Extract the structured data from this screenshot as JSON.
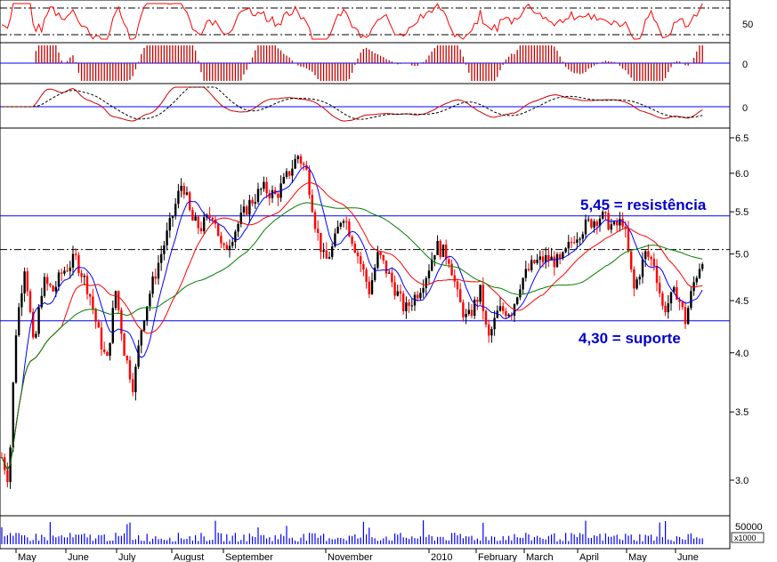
{
  "chart_data": {
    "type": "candlestick",
    "title": "",
    "xlabel": "",
    "ylabel": "",
    "price_scale": "log",
    "ylim": [
      2.9,
      6.6
    ],
    "y_ticks": [
      "6.5",
      "6.0",
      "5.5",
      "5.0",
      "4.5",
      "4.0",
      "3.5",
      "3.0"
    ],
    "x_month_labels": [
      "May",
      "June",
      "July",
      "August",
      "September",
      "November",
      "2010",
      "February",
      "March",
      "April",
      "May",
      "June"
    ],
    "rsi_axis_label": "50",
    "macd_hist_axis_label": "0",
    "macd_axis_label": "0",
    "volume_axis_label": "50000",
    "volume_multiplier_label": "x1000",
    "support": {
      "value": 4.3,
      "label": "4,30 = suporte"
    },
    "resistance": {
      "value": 5.45,
      "label": "5,45 = resistência"
    },
    "reference_dashdot_level": 5.05,
    "series_path": [
      [
        0,
        3.2
      ],
      [
        10,
        3.0
      ],
      [
        18,
        4.2
      ],
      [
        28,
        4.9
      ],
      [
        38,
        4.0
      ],
      [
        48,
        4.7
      ],
      [
        60,
        4.6
      ],
      [
        70,
        4.8
      ],
      [
        85,
        4.95
      ],
      [
        100,
        4.6
      ],
      [
        110,
        4.2
      ],
      [
        120,
        3.9
      ],
      [
        130,
        4.6
      ],
      [
        140,
        4.0
      ],
      [
        150,
        3.7
      ],
      [
        160,
        4.3
      ],
      [
        175,
        4.8
      ],
      [
        190,
        5.3
      ],
      [
        205,
        5.9
      ],
      [
        215,
        5.4
      ],
      [
        225,
        5.3
      ],
      [
        240,
        5.5
      ],
      [
        250,
        5.0
      ],
      [
        265,
        5.3
      ],
      [
        280,
        5.6
      ],
      [
        295,
        5.8
      ],
      [
        310,
        5.7
      ],
      [
        320,
        5.9
      ],
      [
        335,
        6.25
      ],
      [
        345,
        6.0
      ],
      [
        355,
        5.3
      ],
      [
        365,
        4.9
      ],
      [
        375,
        5.1
      ],
      [
        385,
        5.5
      ],
      [
        395,
        5.2
      ],
      [
        405,
        4.9
      ],
      [
        415,
        4.6
      ],
      [
        425,
        5.0
      ],
      [
        440,
        4.7
      ],
      [
        455,
        4.4
      ],
      [
        470,
        4.6
      ],
      [
        480,
        4.8
      ],
      [
        490,
        5.1
      ],
      [
        505,
        4.95
      ],
      [
        515,
        4.5
      ],
      [
        525,
        4.3
      ],
      [
        540,
        4.6
      ],
      [
        548,
        4.1
      ],
      [
        560,
        4.4
      ],
      [
        575,
        4.4
      ],
      [
        585,
        4.7
      ],
      [
        600,
        4.9
      ],
      [
        615,
        4.95
      ],
      [
        630,
        4.9
      ],
      [
        645,
        5.2
      ],
      [
        660,
        5.35
      ],
      [
        675,
        5.45
      ],
      [
        690,
        5.3
      ],
      [
        700,
        5.4
      ],
      [
        712,
        4.6
      ],
      [
        725,
        5.0
      ],
      [
        735,
        4.9
      ],
      [
        745,
        4.4
      ],
      [
        760,
        4.6
      ],
      [
        770,
        4.3
      ],
      [
        780,
        4.7
      ],
      [
        792,
        5.05
      ]
    ],
    "series": [
      {
        "name": "",
        "color": "#0000ff",
        "kind": "moving-average-short"
      },
      {
        "name": "",
        "color": "#ff0000",
        "kind": "moving-average-medium"
      },
      {
        "name": "",
        "color": "#008000",
        "kind": "moving-average-long"
      }
    ]
  },
  "colors": {
    "bull": "#000000",
    "bear": "#ff0000",
    "hline": "#0000ff",
    "rsi_line": "#ff0000",
    "macd_hist": "#c00000",
    "volume": "#0000ff",
    "ann": "#0000cc"
  }
}
